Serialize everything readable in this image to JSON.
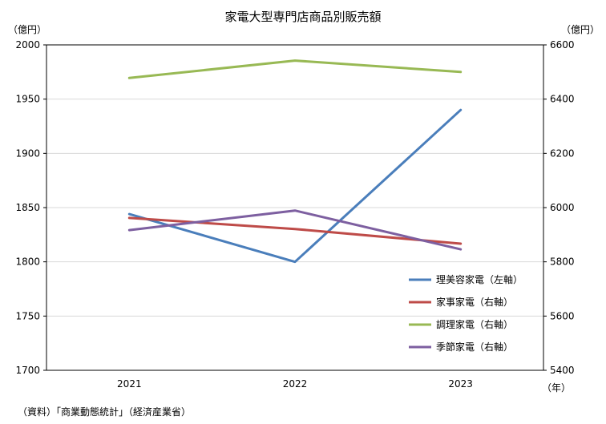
{
  "chart_data": {
    "type": "line",
    "title": "家電大型専門店商品別販売額",
    "x": [
      "2021",
      "2022",
      "2023"
    ],
    "xlabel": "（年）",
    "ylabel_left": "（億円）",
    "ylabel_right": "（億円）",
    "ylim_left": [
      1700,
      2000
    ],
    "ylim_right": [
      5400,
      6600
    ],
    "yticks_left": [
      1700,
      1750,
      1800,
      1850,
      1900,
      1950,
      2000
    ],
    "yticks_right": [
      5400,
      5600,
      5800,
      6000,
      6200,
      6400,
      6600
    ],
    "grid": true,
    "legend_position": "bottom-right",
    "series": [
      {
        "name": "理美容家電（左軸）",
        "axis": "left",
        "color": "#4a7ebb",
        "values": [
          1844,
          1800,
          1940
        ]
      },
      {
        "name": "家事家電（右軸）",
        "axis": "right",
        "color": "#be4b48",
        "values": [
          5962,
          5921,
          5867
        ]
      },
      {
        "name": "調理家電（右軸）",
        "axis": "right",
        "color": "#98b954",
        "values": [
          6478,
          6542,
          6500
        ]
      },
      {
        "name": "季節家電（右軸）",
        "axis": "right",
        "color": "#7d5fa0",
        "values": [
          5917,
          5989,
          5846
        ]
      }
    ],
    "source": "（資料）「商業動態統計」（経済産業省）"
  }
}
